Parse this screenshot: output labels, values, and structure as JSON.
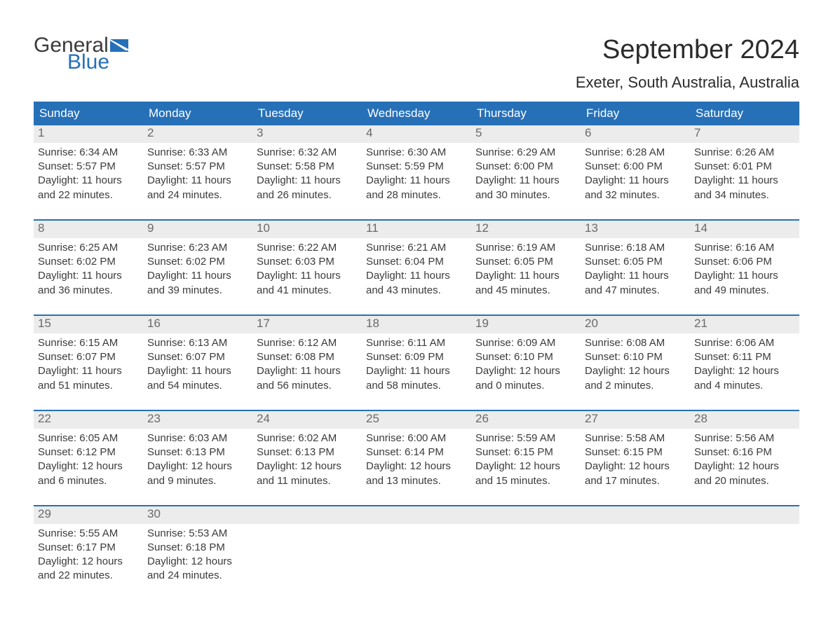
{
  "brand": {
    "word1": "General",
    "word2": "Blue",
    "flag_color": "#2670b8"
  },
  "title": "September 2024",
  "location": "Exeter, South Australia, Australia",
  "colors": {
    "header_bg": "#2670b8",
    "header_text": "#ffffff",
    "daynum_bg": "#ececec",
    "daynum_text": "#6a6a6a",
    "body_text": "#3b3b3b",
    "week_divider": "#2670b8",
    "page_bg": "#ffffff"
  },
  "typography": {
    "title_fontsize": 38,
    "location_fontsize": 22,
    "dayheader_fontsize": 17,
    "body_fontsize": 15,
    "font_family": "Arial"
  },
  "layout": {
    "columns": 7,
    "rows": 5,
    "cell_body_lines": 4
  },
  "days_of_week": [
    "Sunday",
    "Monday",
    "Tuesday",
    "Wednesday",
    "Thursday",
    "Friday",
    "Saturday"
  ],
  "weeks": [
    [
      {
        "n": "1",
        "sunrise": "Sunrise: 6:34 AM",
        "sunset": "Sunset: 5:57 PM",
        "d1": "Daylight: 11 hours",
        "d2": "and 22 minutes."
      },
      {
        "n": "2",
        "sunrise": "Sunrise: 6:33 AM",
        "sunset": "Sunset: 5:57 PM",
        "d1": "Daylight: 11 hours",
        "d2": "and 24 minutes."
      },
      {
        "n": "3",
        "sunrise": "Sunrise: 6:32 AM",
        "sunset": "Sunset: 5:58 PM",
        "d1": "Daylight: 11 hours",
        "d2": "and 26 minutes."
      },
      {
        "n": "4",
        "sunrise": "Sunrise: 6:30 AM",
        "sunset": "Sunset: 5:59 PM",
        "d1": "Daylight: 11 hours",
        "d2": "and 28 minutes."
      },
      {
        "n": "5",
        "sunrise": "Sunrise: 6:29 AM",
        "sunset": "Sunset: 6:00 PM",
        "d1": "Daylight: 11 hours",
        "d2": "and 30 minutes."
      },
      {
        "n": "6",
        "sunrise": "Sunrise: 6:28 AM",
        "sunset": "Sunset: 6:00 PM",
        "d1": "Daylight: 11 hours",
        "d2": "and 32 minutes."
      },
      {
        "n": "7",
        "sunrise": "Sunrise: 6:26 AM",
        "sunset": "Sunset: 6:01 PM",
        "d1": "Daylight: 11 hours",
        "d2": "and 34 minutes."
      }
    ],
    [
      {
        "n": "8",
        "sunrise": "Sunrise: 6:25 AM",
        "sunset": "Sunset: 6:02 PM",
        "d1": "Daylight: 11 hours",
        "d2": "and 36 minutes."
      },
      {
        "n": "9",
        "sunrise": "Sunrise: 6:23 AM",
        "sunset": "Sunset: 6:02 PM",
        "d1": "Daylight: 11 hours",
        "d2": "and 39 minutes."
      },
      {
        "n": "10",
        "sunrise": "Sunrise: 6:22 AM",
        "sunset": "Sunset: 6:03 PM",
        "d1": "Daylight: 11 hours",
        "d2": "and 41 minutes."
      },
      {
        "n": "11",
        "sunrise": "Sunrise: 6:21 AM",
        "sunset": "Sunset: 6:04 PM",
        "d1": "Daylight: 11 hours",
        "d2": "and 43 minutes."
      },
      {
        "n": "12",
        "sunrise": "Sunrise: 6:19 AM",
        "sunset": "Sunset: 6:05 PM",
        "d1": "Daylight: 11 hours",
        "d2": "and 45 minutes."
      },
      {
        "n": "13",
        "sunrise": "Sunrise: 6:18 AM",
        "sunset": "Sunset: 6:05 PM",
        "d1": "Daylight: 11 hours",
        "d2": "and 47 minutes."
      },
      {
        "n": "14",
        "sunrise": "Sunrise: 6:16 AM",
        "sunset": "Sunset: 6:06 PM",
        "d1": "Daylight: 11 hours",
        "d2": "and 49 minutes."
      }
    ],
    [
      {
        "n": "15",
        "sunrise": "Sunrise: 6:15 AM",
        "sunset": "Sunset: 6:07 PM",
        "d1": "Daylight: 11 hours",
        "d2": "and 51 minutes."
      },
      {
        "n": "16",
        "sunrise": "Sunrise: 6:13 AM",
        "sunset": "Sunset: 6:07 PM",
        "d1": "Daylight: 11 hours",
        "d2": "and 54 minutes."
      },
      {
        "n": "17",
        "sunrise": "Sunrise: 6:12 AM",
        "sunset": "Sunset: 6:08 PM",
        "d1": "Daylight: 11 hours",
        "d2": "and 56 minutes."
      },
      {
        "n": "18",
        "sunrise": "Sunrise: 6:11 AM",
        "sunset": "Sunset: 6:09 PM",
        "d1": "Daylight: 11 hours",
        "d2": "and 58 minutes."
      },
      {
        "n": "19",
        "sunrise": "Sunrise: 6:09 AM",
        "sunset": "Sunset: 6:10 PM",
        "d1": "Daylight: 12 hours",
        "d2": "and 0 minutes."
      },
      {
        "n": "20",
        "sunrise": "Sunrise: 6:08 AM",
        "sunset": "Sunset: 6:10 PM",
        "d1": "Daylight: 12 hours",
        "d2": "and 2 minutes."
      },
      {
        "n": "21",
        "sunrise": "Sunrise: 6:06 AM",
        "sunset": "Sunset: 6:11 PM",
        "d1": "Daylight: 12 hours",
        "d2": "and 4 minutes."
      }
    ],
    [
      {
        "n": "22",
        "sunrise": "Sunrise: 6:05 AM",
        "sunset": "Sunset: 6:12 PM",
        "d1": "Daylight: 12 hours",
        "d2": "and 6 minutes."
      },
      {
        "n": "23",
        "sunrise": "Sunrise: 6:03 AM",
        "sunset": "Sunset: 6:13 PM",
        "d1": "Daylight: 12 hours",
        "d2": "and 9 minutes."
      },
      {
        "n": "24",
        "sunrise": "Sunrise: 6:02 AM",
        "sunset": "Sunset: 6:13 PM",
        "d1": "Daylight: 12 hours",
        "d2": "and 11 minutes."
      },
      {
        "n": "25",
        "sunrise": "Sunrise: 6:00 AM",
        "sunset": "Sunset: 6:14 PM",
        "d1": "Daylight: 12 hours",
        "d2": "and 13 minutes."
      },
      {
        "n": "26",
        "sunrise": "Sunrise: 5:59 AM",
        "sunset": "Sunset: 6:15 PM",
        "d1": "Daylight: 12 hours",
        "d2": "and 15 minutes."
      },
      {
        "n": "27",
        "sunrise": "Sunrise: 5:58 AM",
        "sunset": "Sunset: 6:15 PM",
        "d1": "Daylight: 12 hours",
        "d2": "and 17 minutes."
      },
      {
        "n": "28",
        "sunrise": "Sunrise: 5:56 AM",
        "sunset": "Sunset: 6:16 PM",
        "d1": "Daylight: 12 hours",
        "d2": "and 20 minutes."
      }
    ],
    [
      {
        "n": "29",
        "sunrise": "Sunrise: 5:55 AM",
        "sunset": "Sunset: 6:17 PM",
        "d1": "Daylight: 12 hours",
        "d2": "and 22 minutes."
      },
      {
        "n": "30",
        "sunrise": "Sunrise: 5:53 AM",
        "sunset": "Sunset: 6:18 PM",
        "d1": "Daylight: 12 hours",
        "d2": "and 24 minutes."
      },
      null,
      null,
      null,
      null,
      null
    ]
  ]
}
